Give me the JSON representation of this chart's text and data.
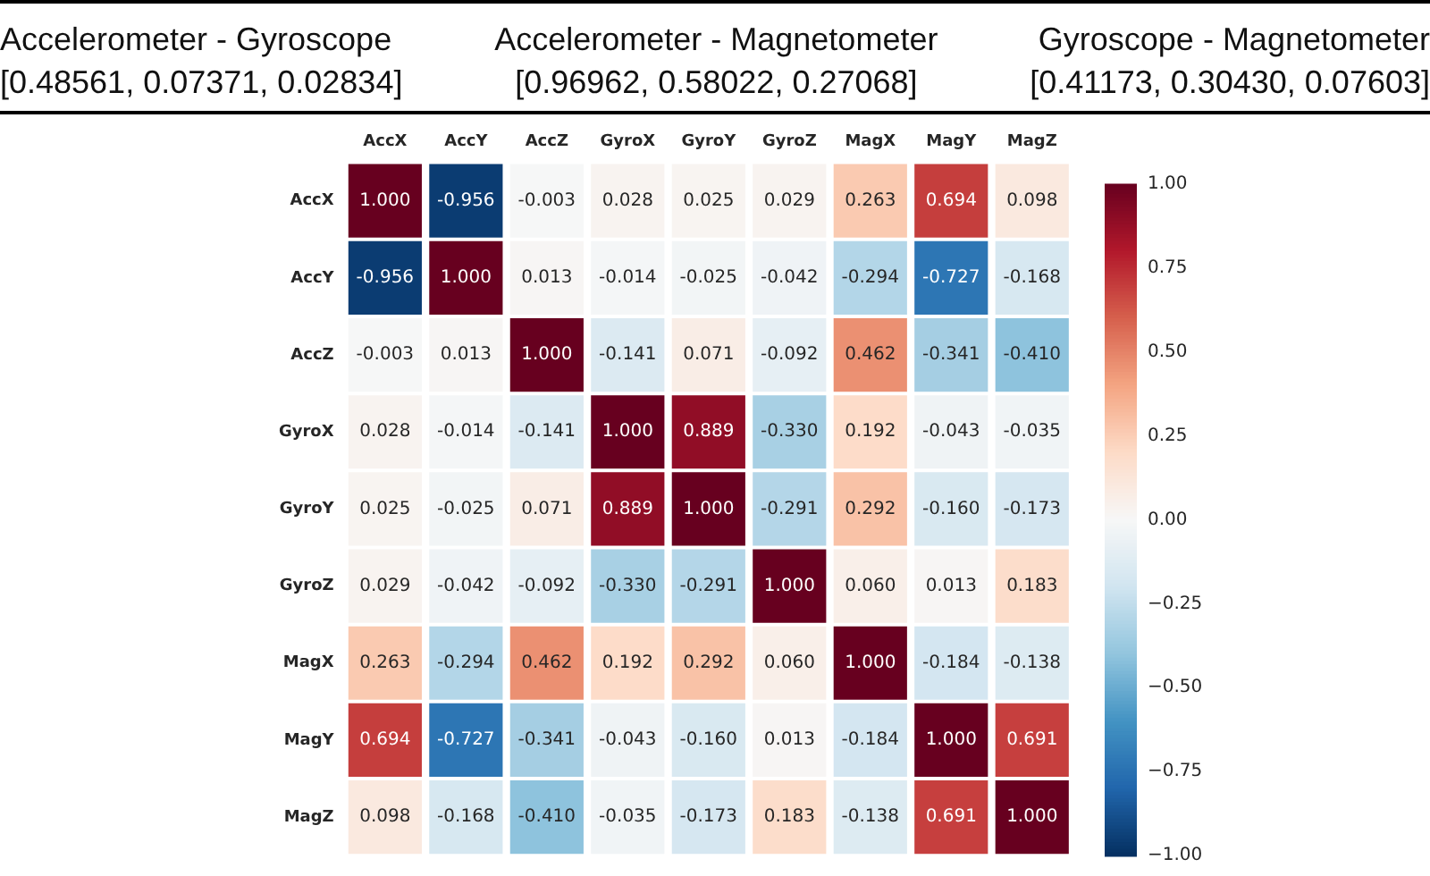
{
  "chart_data": {
    "type": "heatmap",
    "annotations": [
      "Accelerometer - Gyroscope",
      "[0.48561, 0.07371, 0.02834]",
      "Accelerometer - Magnetometer",
      "[0.96962, 0.58022, 0.27068]",
      "Gyroscope - Magnetometer",
      "[0.41173, 0.30430, 0.07603]"
    ],
    "categories": [
      "AccX",
      "AccY",
      "AccZ",
      "GyroX",
      "GyroY",
      "GyroZ",
      "MagX",
      "MagY",
      "MagZ"
    ],
    "y_categories": [
      "AccX",
      "AccY",
      "AccZ",
      "GyroX",
      "GyroY",
      "GyroZ",
      "MagX",
      "MagY",
      "MagZ"
    ],
    "cells": [
      [
        1,
        -0.956,
        -0.003,
        0.028,
        0.025,
        0.029,
        0.263,
        0.694,
        0.098
      ],
      [
        -0.956,
        1,
        0.013,
        -0.014,
        -0.025,
        -0.042,
        -0.294,
        -0.727,
        -0.168
      ],
      [
        -0.003,
        0.013,
        1,
        -0.141,
        0.071,
        -0.092,
        0.462,
        -0.341,
        -0.41
      ],
      [
        0.028,
        -0.014,
        -0.141,
        1,
        0.889,
        -0.33,
        0.192,
        -0.043,
        -0.035
      ],
      [
        0.025,
        -0.025,
        0.071,
        0.889,
        1,
        -0.291,
        0.292,
        -0.16,
        -0.173
      ],
      [
        0.029,
        -0.042,
        -0.092,
        -0.33,
        -0.291,
        1,
        0.06,
        0.013,
        0.183
      ],
      [
        0.263,
        -0.294,
        0.462,
        0.192,
        0.292,
        0.06,
        1,
        -0.184,
        -0.138
      ],
      [
        0.694,
        -0.727,
        -0.341,
        -0.043,
        -0.16,
        0.013,
        -0.184,
        1,
        0.691
      ],
      [
        0.098,
        -0.168,
        -0.41,
        -0.035,
        -0.173,
        0.183,
        -0.138,
        0.691,
        1
      ]
    ],
    "cell_labels": [
      [
        "1.000",
        "-0.956",
        "-0.003",
        "0.028",
        "0.025",
        "0.029",
        "0.263",
        "0.694",
        "0.098"
      ],
      [
        "-0.956",
        "1.000",
        "0.013",
        "-0.014",
        "-0.025",
        "-0.042",
        "-0.294",
        "-0.727",
        "-0.168"
      ],
      [
        "-0.003",
        "0.013",
        "1.000",
        "-0.141",
        "0.071",
        "-0.092",
        "0.462",
        "-0.341",
        "-0.410"
      ],
      [
        "0.028",
        "-0.014",
        "-0.141",
        "1.000",
        "0.889",
        "-0.330",
        "0.192",
        "-0.043",
        "-0.035"
      ],
      [
        "0.025",
        "-0.025",
        "0.071",
        "0.889",
        "1.000",
        "-0.291",
        "0.292",
        "-0.160",
        "-0.173"
      ],
      [
        "0.029",
        "-0.042",
        "-0.092",
        "-0.330",
        "-0.291",
        "1.000",
        "0.060",
        "0.013",
        "0.183"
      ],
      [
        "0.263",
        "-0.294",
        "0.462",
        "0.192",
        "0.292",
        "0.060",
        "1.000",
        "-0.184",
        "-0.138"
      ],
      [
        "0.694",
        "-0.727",
        "-0.341",
        "-0.043",
        "-0.160",
        "0.013",
        "-0.184",
        "1.000",
        "0.691"
      ],
      [
        "0.098",
        "-0.168",
        "-0.410",
        "-0.035",
        "-0.173",
        "0.183",
        "-0.138",
        "0.691",
        "1.000"
      ]
    ],
    "clim": [
      -1,
      1
    ],
    "cticks": [
      {
        "value": 1,
        "label": "1.00"
      },
      {
        "value": 0.75,
        "label": "0.75"
      },
      {
        "value": 0.5,
        "label": "0.50"
      },
      {
        "value": 0.25,
        "label": "0.25"
      },
      {
        "value": 0,
        "label": "0.00"
      },
      {
        "value": -0.25,
        "label": "−0.25"
      },
      {
        "value": -0.5,
        "label": "−0.50"
      },
      {
        "value": -0.75,
        "label": "−0.75"
      },
      {
        "value": -1,
        "label": "−1.00"
      }
    ]
  }
}
